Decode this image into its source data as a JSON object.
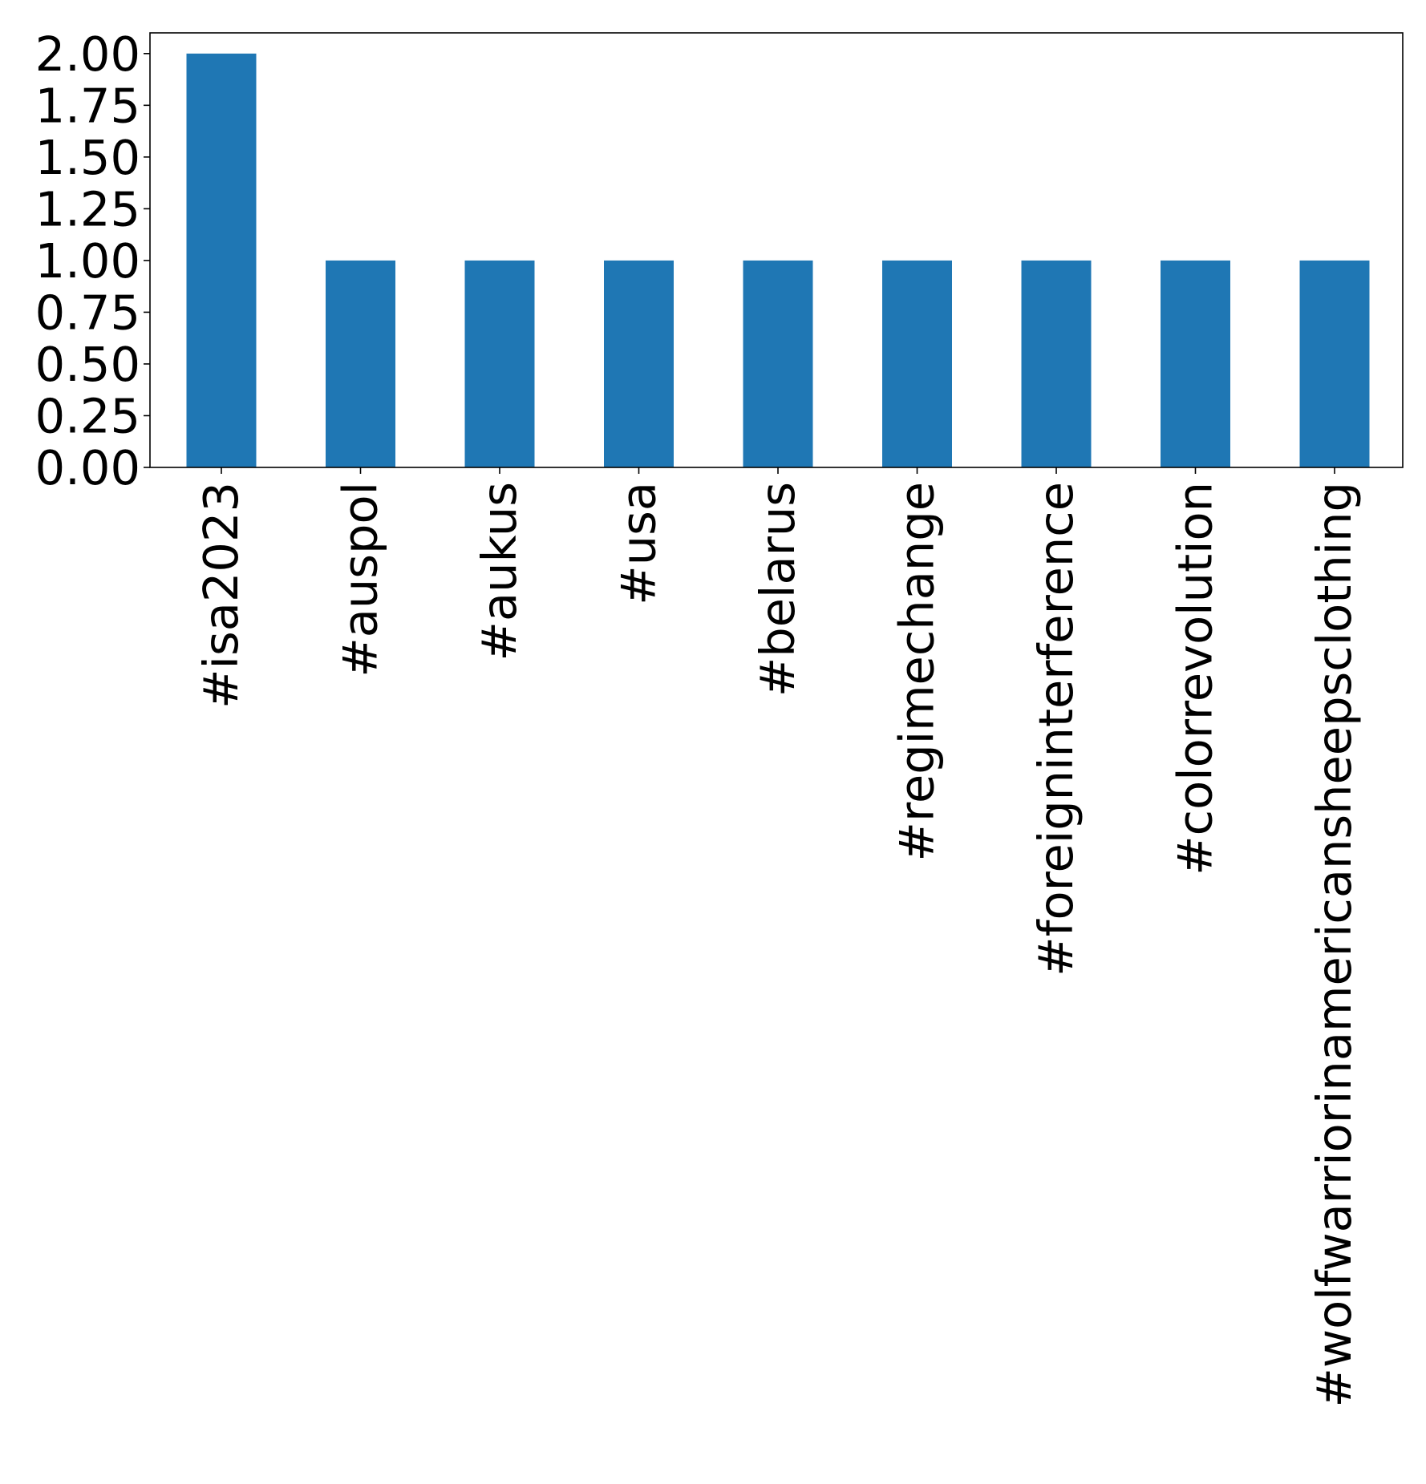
{
  "chart_data": {
    "type": "bar",
    "title": "",
    "xlabel": "",
    "ylabel": "",
    "categories": [
      "#isa2023",
      "#auspol",
      "#aukus",
      "#usa",
      "#belarus",
      "#regimechange",
      "#foreigninterference",
      "#colorrevolution",
      "#wolfwarriorinamericansheepsclothing"
    ],
    "values": [
      2,
      1,
      1,
      1,
      1,
      1,
      1,
      1,
      1
    ],
    "ylim": [
      0,
      2.1
    ],
    "yticks": [
      0,
      0.25,
      0.5,
      0.75,
      1.0,
      1.25,
      1.5,
      1.75,
      2.0
    ],
    "ytick_labels": [
      "0.00",
      "0.25",
      "0.50",
      "0.75",
      "1.00",
      "1.25",
      "1.50",
      "1.75",
      "2.00"
    ],
    "grid": false,
    "legend": "none",
    "bar_color": "#1f77b4"
  }
}
